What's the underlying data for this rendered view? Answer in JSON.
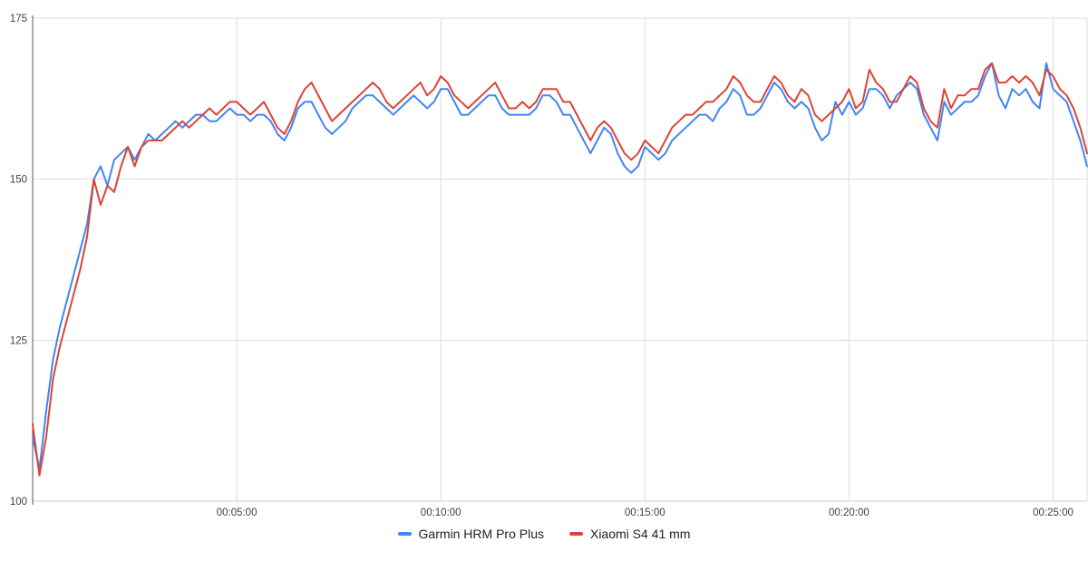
{
  "page": {
    "background": "#ffffff"
  },
  "legend": {
    "items": [
      {
        "label": "Garmin HRM Pro Plus",
        "color": "#4285F4"
      },
      {
        "label": "Xiaomi S4 41 mm",
        "color": "#DB4437"
      }
    ]
  },
  "chart_data": {
    "type": "line",
    "title": "",
    "xlabel": "",
    "ylabel": "",
    "ylim": [
      100,
      175
    ],
    "y_ticks": [
      100,
      125,
      150,
      175
    ],
    "x_ticks": [
      {
        "seconds": 300,
        "label": "00:05:00"
      },
      {
        "seconds": 600,
        "label": "00:10:00"
      },
      {
        "seconds": 900,
        "label": "00:15:00"
      },
      {
        "seconds": 1200,
        "label": "00:20:00"
      },
      {
        "seconds": 1500,
        "label": "00:25:00"
      }
    ],
    "x_max_seconds": 1550,
    "sample_interval_seconds": 10,
    "grid": true,
    "legend_position": "bottom",
    "grid_color": "#dcdcdc",
    "left_axis_color": "#555555",
    "bottom_axis_color": "#cccccc",
    "series": [
      {
        "name": "Garmin HRM Pro Plus",
        "color": "#4285F4",
        "values": [
          110,
          105,
          114,
          122,
          127,
          131,
          135,
          139,
          143,
          150,
          152,
          149,
          153,
          154,
          155,
          153,
          155,
          157,
          156,
          157,
          158,
          159,
          158,
          159,
          160,
          160,
          159,
          159,
          160,
          161,
          160,
          160,
          159,
          160,
          160,
          159,
          157,
          156,
          158,
          161,
          162,
          162,
          160,
          158,
          157,
          158,
          159,
          161,
          162,
          163,
          163,
          162,
          161,
          160,
          161,
          162,
          163,
          162,
          161,
          162,
          164,
          164,
          162,
          160,
          160,
          161,
          162,
          163,
          163,
          161,
          160,
          160,
          160,
          160,
          161,
          163,
          163,
          162,
          160,
          160,
          158,
          156,
          154,
          156,
          158,
          157,
          154,
          152,
          151,
          152,
          155,
          154,
          153,
          154,
          156,
          157,
          158,
          159,
          160,
          160,
          159,
          161,
          162,
          164,
          163,
          160,
          160,
          161,
          163,
          165,
          164,
          162,
          161,
          162,
          161,
          158,
          156,
          157,
          162,
          160,
          162,
          160,
          161,
          164,
          164,
          163,
          161,
          163,
          164,
          165,
          164,
          160,
          158,
          156,
          162,
          160,
          161,
          162,
          162,
          163,
          166,
          168,
          163,
          161,
          164,
          163,
          164,
          162,
          161,
          168,
          164,
          163,
          162,
          159,
          156,
          152
        ]
      },
      {
        "name": "Xiaomi S4 41 mm",
        "color": "#DB4437",
        "values": [
          112,
          104,
          110,
          119,
          124,
          128,
          132,
          136,
          141,
          150,
          146,
          149,
          148,
          152,
          155,
          152,
          155,
          156,
          156,
          156,
          157,
          158,
          159,
          158,
          159,
          160,
          161,
          160,
          161,
          162,
          162,
          161,
          160,
          161,
          162,
          160,
          158,
          157,
          159,
          162,
          164,
          165,
          163,
          161,
          159,
          160,
          161,
          162,
          163,
          164,
          165,
          164,
          162,
          161,
          162,
          163,
          164,
          165,
          163,
          164,
          166,
          165,
          163,
          162,
          161,
          162,
          163,
          164,
          165,
          163,
          161,
          161,
          162,
          161,
          162,
          164,
          164,
          164,
          162,
          162,
          160,
          158,
          156,
          158,
          159,
          158,
          156,
          154,
          153,
          154,
          156,
          155,
          154,
          156,
          158,
          159,
          160,
          160,
          161,
          162,
          162,
          163,
          164,
          166,
          165,
          163,
          162,
          162,
          164,
          166,
          165,
          163,
          162,
          164,
          163,
          160,
          159,
          160,
          161,
          162,
          164,
          161,
          162,
          167,
          165,
          164,
          162,
          162,
          164,
          166,
          165,
          161,
          159,
          158,
          164,
          161,
          163,
          163,
          164,
          164,
          167,
          168,
          165,
          165,
          166,
          165,
          166,
          165,
          163,
          167,
          166,
          164,
          163,
          161,
          158,
          154
        ]
      }
    ]
  }
}
